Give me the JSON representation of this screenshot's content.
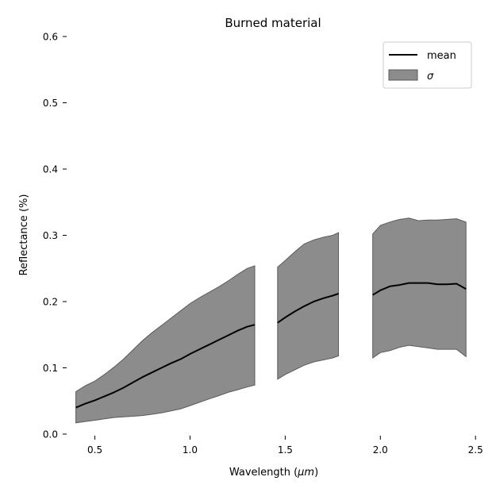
{
  "chart_data": {
    "type": "area",
    "title": "Burned material",
    "xlabel": "Wavelength (",
    "xlabel_unit": "μm",
    "xlabel_suffix": ")",
    "ylabel": "Reflectance (%)",
    "xlim": [
      0.36,
      2.52
    ],
    "ylim": [
      0.0,
      0.6
    ],
    "xticks": [
      0.5,
      1.0,
      1.5,
      2.0,
      2.5
    ],
    "xtick_labels": [
      "0.5",
      "1.0",
      "1.5",
      "2.0",
      "2.5"
    ],
    "yticks": [
      0.0,
      0.1,
      0.2,
      0.3,
      0.4,
      0.5,
      0.6
    ],
    "ytick_labels": [
      "0.0",
      "0.1",
      "0.2",
      "0.3",
      "0.4",
      "0.5",
      "0.6"
    ],
    "grid": false,
    "legend_position": "top-right",
    "legend": [
      {
        "label": "mean",
        "kind": "line",
        "color": "#000000"
      },
      {
        "label": "σ",
        "kind": "patch",
        "color": "#8c8c8c"
      }
    ],
    "band_color": "#8c8c8c",
    "band_edge_color": "#5a5a5a",
    "mean_color": "#000000",
    "segments": [
      {
        "x": [
          0.4,
          0.45,
          0.5,
          0.55,
          0.6,
          0.65,
          0.7,
          0.75,
          0.8,
          0.85,
          0.9,
          0.95,
          1.0,
          1.05,
          1.1,
          1.15,
          1.2,
          1.25,
          1.3,
          1.34
        ],
        "mean": [
          0.04,
          0.046,
          0.051,
          0.057,
          0.063,
          0.07,
          0.078,
          0.086,
          0.093,
          0.1,
          0.107,
          0.113,
          0.121,
          0.128,
          0.135,
          0.142,
          0.149,
          0.156,
          0.162,
          0.165
        ],
        "lower": [
          0.017,
          0.019,
          0.021,
          0.023,
          0.025,
          0.026,
          0.027,
          0.028,
          0.03,
          0.032,
          0.035,
          0.038,
          0.043,
          0.048,
          0.053,
          0.058,
          0.063,
          0.067,
          0.071,
          0.074
        ],
        "upper": [
          0.064,
          0.073,
          0.08,
          0.09,
          0.101,
          0.113,
          0.127,
          0.141,
          0.153,
          0.164,
          0.175,
          0.186,
          0.197,
          0.206,
          0.214,
          0.222,
          0.231,
          0.241,
          0.25,
          0.254
        ]
      },
      {
        "x": [
          1.46,
          1.5,
          1.55,
          1.6,
          1.65,
          1.7,
          1.75,
          1.78
        ],
        "mean": [
          0.168,
          0.176,
          0.185,
          0.193,
          0.2,
          0.205,
          0.209,
          0.212
        ],
        "lower": [
          0.083,
          0.09,
          0.097,
          0.104,
          0.109,
          0.112,
          0.115,
          0.118
        ],
        "upper": [
          0.252,
          0.262,
          0.275,
          0.287,
          0.293,
          0.297,
          0.3,
          0.304
        ]
      },
      {
        "x": [
          1.96,
          2.0,
          2.05,
          2.1,
          2.15,
          2.2,
          2.25,
          2.3,
          2.35,
          2.4,
          2.45
        ],
        "mean": [
          0.21,
          0.217,
          0.223,
          0.225,
          0.228,
          0.228,
          0.228,
          0.226,
          0.226,
          0.227,
          0.219
        ],
        "lower": [
          0.115,
          0.123,
          0.126,
          0.131,
          0.134,
          0.132,
          0.13,
          0.128,
          0.128,
          0.128,
          0.117
        ],
        "upper": [
          0.302,
          0.315,
          0.32,
          0.324,
          0.326,
          0.322,
          0.323,
          0.323,
          0.324,
          0.325,
          0.32
        ]
      }
    ]
  }
}
